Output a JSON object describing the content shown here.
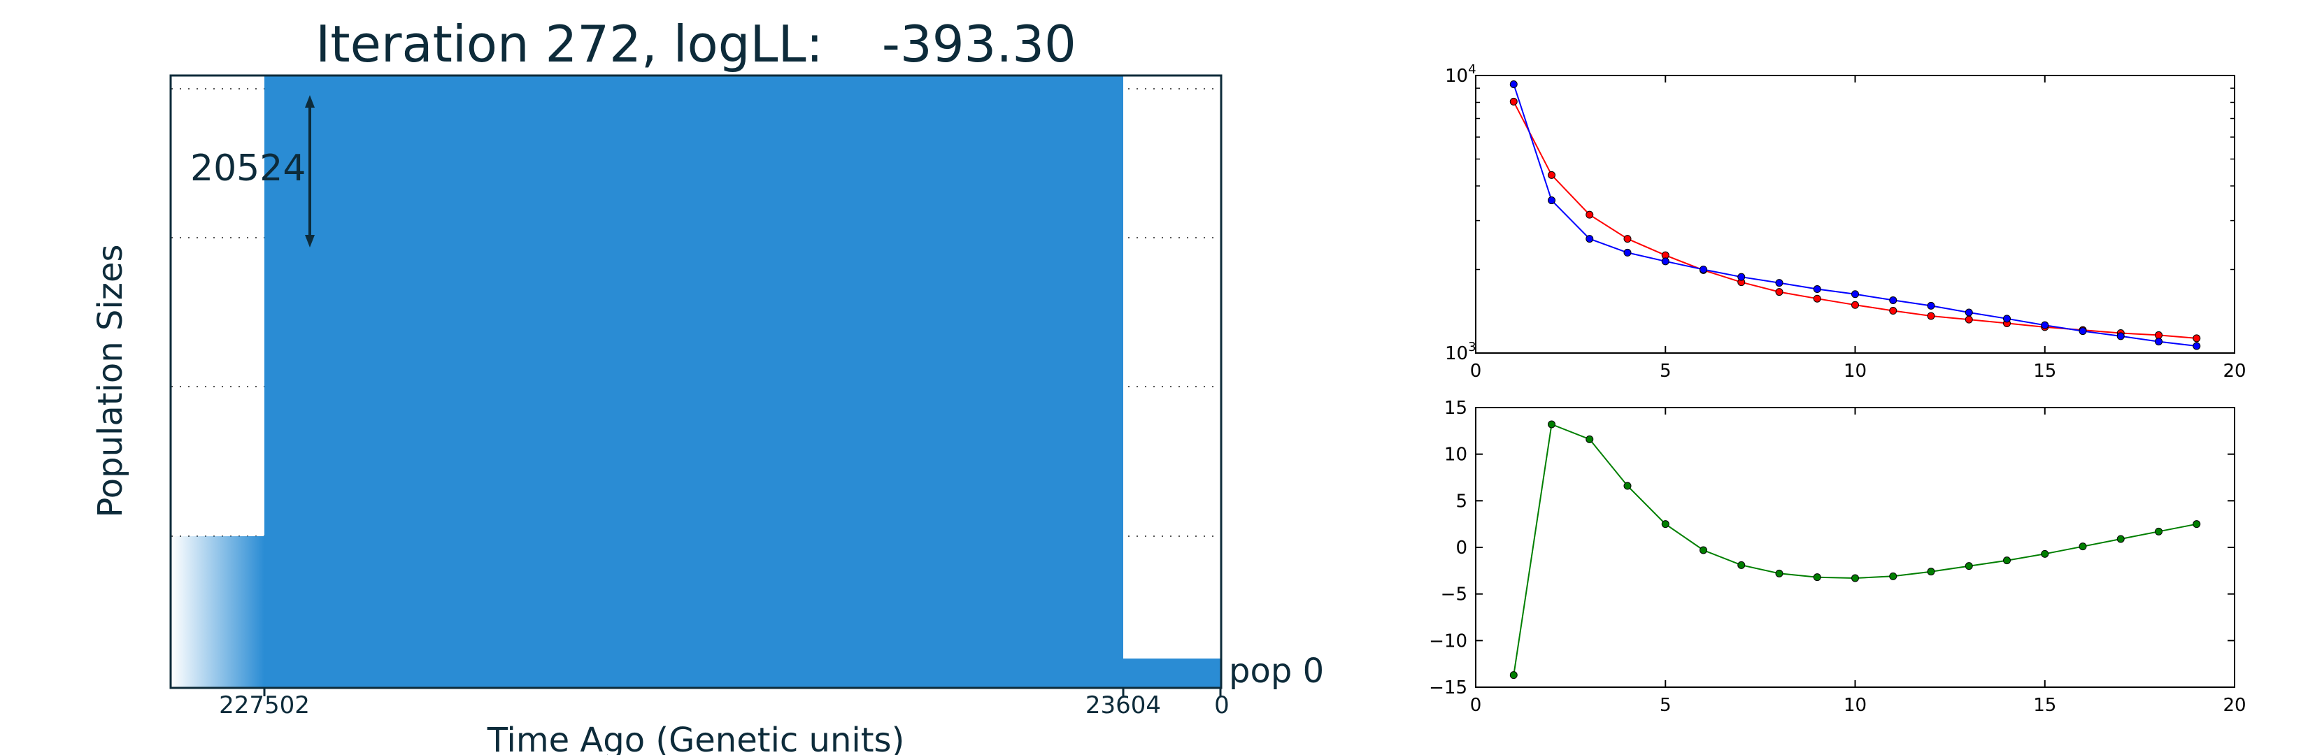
{
  "demography_panel": {
    "title_prefix": "Iteration 272, logLL:",
    "log_likelihood": "-393.30",
    "ylabel": "Population Sizes",
    "xlabel": "Time Ago (Genetic units)",
    "scale_bar_label": "20524",
    "population_label": "pop 0",
    "time_tick_labels": [
      "227502",
      "23604",
      "0"
    ],
    "fill_color": "#2a8cd4",
    "text_color": "#0d2b3a"
  },
  "chart_data": [
    {
      "type": "line",
      "yscale": "log",
      "xlim": [
        0,
        20
      ],
      "ylim": [
        1000,
        10000
      ],
      "x_ticks": [
        "0",
        "5",
        "10",
        "15",
        "20"
      ],
      "y_ticks": [
        {
          "base": "10",
          "exp": "3"
        },
        {
          "base": "10",
          "exp": "4"
        }
      ],
      "grid": false,
      "series": [
        {
          "color": "#ff0000",
          "x": [
            1,
            2,
            3,
            4,
            5,
            6,
            7,
            8,
            9,
            10,
            11,
            12,
            13,
            14,
            15,
            16,
            17,
            18,
            19
          ],
          "y": [
            8050,
            4380,
            3150,
            2580,
            2250,
            1990,
            1800,
            1660,
            1570,
            1490,
            1420,
            1360,
            1320,
            1280,
            1240,
            1210,
            1180,
            1160,
            1130
          ]
        },
        {
          "color": "#0000ff",
          "x": [
            1,
            2,
            3,
            4,
            5,
            6,
            7,
            8,
            9,
            10,
            11,
            12,
            13,
            14,
            15,
            16,
            17,
            18,
            19
          ],
          "y": [
            9300,
            3550,
            2580,
            2300,
            2140,
            2000,
            1880,
            1790,
            1700,
            1630,
            1550,
            1480,
            1400,
            1330,
            1260,
            1200,
            1150,
            1100,
            1060
          ]
        }
      ]
    },
    {
      "type": "line",
      "xlim": [
        0,
        20
      ],
      "ylim": [
        -15,
        15
      ],
      "x_ticks": [
        "0",
        "5",
        "10",
        "15",
        "20"
      ],
      "y_ticks": [
        "15",
        "10",
        "5",
        "0",
        "−5",
        "−10",
        "−15"
      ],
      "grid": false,
      "series": [
        {
          "color": "#007f00",
          "x": [
            1,
            2,
            3,
            4,
            5,
            6,
            7,
            8,
            9,
            10,
            11,
            12,
            13,
            14,
            15,
            16,
            17,
            18,
            19
          ],
          "y": [
            -13.7,
            13.2,
            11.6,
            6.6,
            2.5,
            -0.3,
            -1.9,
            -2.8,
            -3.2,
            -3.3,
            -3.1,
            -2.6,
            -2.0,
            -1.4,
            -0.7,
            0.1,
            0.9,
            1.7,
            2.5
          ]
        }
      ]
    }
  ]
}
